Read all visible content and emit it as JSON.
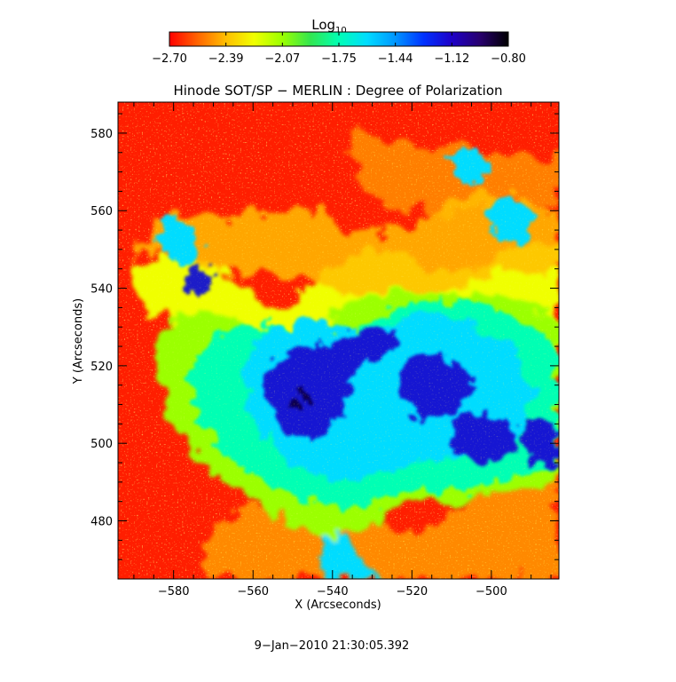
{
  "colorbar": {
    "title_base": "Log",
    "title_subscript": "10",
    "tick_labels": [
      "−2.70",
      "−2.39",
      "−2.07",
      "−1.75",
      "−1.44",
      "−1.12",
      "−0.80"
    ],
    "range": [
      -2.7,
      -0.8
    ],
    "colormap": [
      "#ff0000",
      "#ff6400",
      "#ffbe00",
      "#f0ff00",
      "#9bff00",
      "#32e650",
      "#00ffb4",
      "#00dcff",
      "#0096ff",
      "#0032ff",
      "#1e00c8",
      "#28006e",
      "#000000"
    ]
  },
  "image": {
    "title": "Hinode SOT/SP − MERLIN : Degree of Polarization",
    "xlabel": "X (Arcseconds)",
    "ylabel": "Y (Arcseconds)",
    "x_ticks": [
      -580,
      -560,
      -540,
      -520,
      -500
    ],
    "x_tick_labels": [
      "−580",
      "−560",
      "−540",
      "−520",
      "−500"
    ],
    "y_ticks": [
      480,
      500,
      520,
      540,
      560,
      580
    ],
    "y_tick_labels": [
      "480",
      "500",
      "520",
      "540",
      "560",
      "580"
    ],
    "xlim": [
      -594,
      -483
    ],
    "ylim": [
      465,
      588
    ]
  },
  "timestamp": "9−Jan−2010 21:30:05.392"
}
